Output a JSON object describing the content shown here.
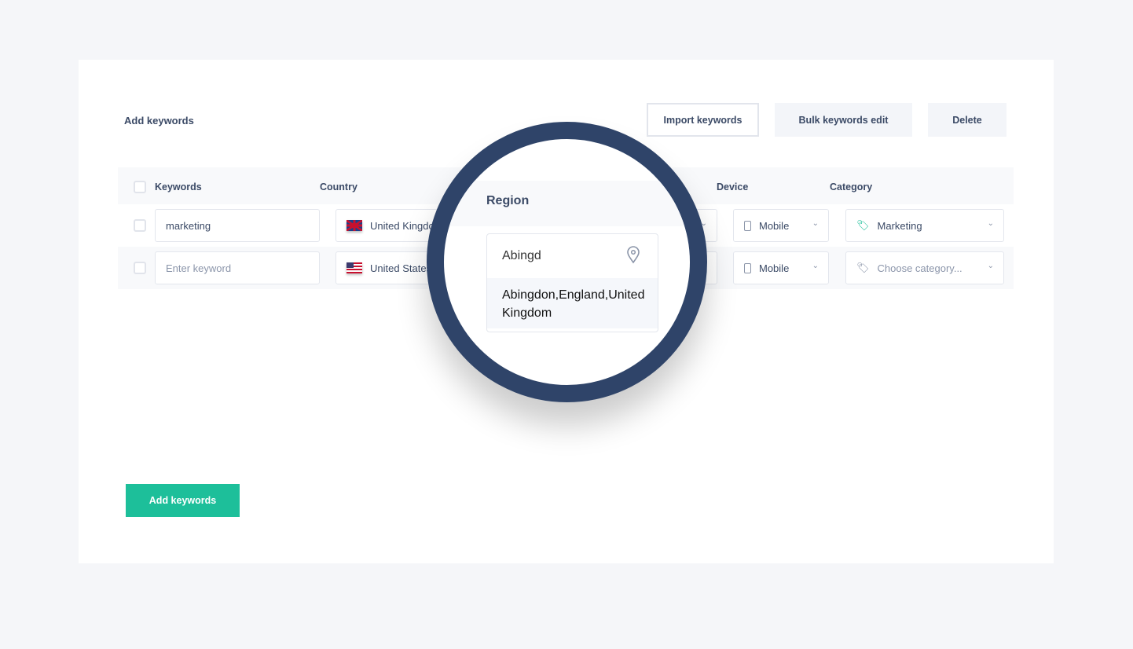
{
  "header": {
    "title": "Add keywords",
    "import_label": "Import keywords",
    "bulk_label": "Bulk keywords edit",
    "delete_label": "Delete"
  },
  "table": {
    "columns": [
      "Keywords",
      "Country",
      "Region",
      "Device",
      "Category"
    ],
    "rows": [
      {
        "keyword": "marketing",
        "keyword_placeholder": "Enter keyword",
        "country": "United Kingdom",
        "flag": "uk",
        "device": "Mobile",
        "category": "Marketing",
        "category_placeholder": "Choose category..."
      },
      {
        "keyword": "",
        "keyword_placeholder": "Enter keyword",
        "country": "United States",
        "flag": "us",
        "device": "Mobile",
        "category": "",
        "category_placeholder": "Choose category..."
      }
    ]
  },
  "region": {
    "label": "Region",
    "input_value": "Abingd",
    "suggestion": "Abingdon,England,United Kingdom"
  },
  "footer": {
    "add_label": "Add keywords"
  },
  "colors": {
    "accent": "#1dbf9a",
    "magnifier": "#2f4469"
  }
}
